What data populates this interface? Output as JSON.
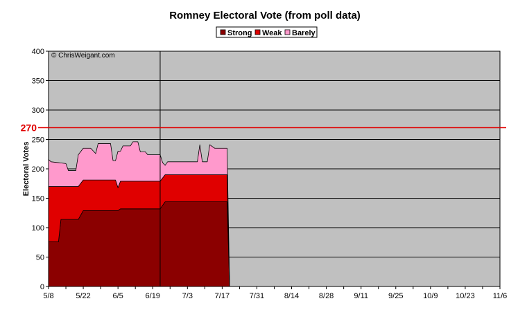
{
  "chart_data": {
    "type": "area",
    "stacked": true,
    "title": "Romney Electoral Vote (from poll data)",
    "ylabel": "Electoral Votes",
    "xlabel": "",
    "ylim": [
      0,
      400
    ],
    "yticks": [
      0,
      50,
      100,
      150,
      200,
      250,
      300,
      350,
      400
    ],
    "x_tick_labels": [
      "5/8",
      "5/22",
      "6/5",
      "6/19",
      "7/3",
      "7/17",
      "7/31",
      "8/14",
      "8/28",
      "9/11",
      "9/25",
      "10/9",
      "10/23",
      "11/6"
    ],
    "x_start": "2012-05-08",
    "x_end": "2012-11-06",
    "grid": "horizontal",
    "legend_position": "top",
    "copyright": "© ChrisWeigant.com",
    "reference_line": {
      "value": 270,
      "label": "270",
      "color": "#e00000"
    },
    "marker_line": {
      "date": "2012-06-22"
    },
    "plot_background": "#c0c0c0",
    "series": [
      {
        "name": "Strong",
        "color": "#8b0000",
        "points": [
          [
            "2012-05-08",
            76
          ],
          [
            "2012-05-12",
            76
          ],
          [
            "2012-05-13",
            114
          ],
          [
            "2012-05-20",
            114
          ],
          [
            "2012-05-22",
            129
          ],
          [
            "2012-06-05",
            129
          ],
          [
            "2012-06-06",
            132
          ],
          [
            "2012-06-22",
            132
          ],
          [
            "2012-06-24",
            144
          ],
          [
            "2012-07-19",
            144
          ],
          [
            "2012-07-20",
            0
          ]
        ]
      },
      {
        "name": "Weak",
        "color": "#e00000",
        "points": [
          [
            "2012-05-08",
            94
          ],
          [
            "2012-05-12",
            94
          ],
          [
            "2012-05-13",
            56
          ],
          [
            "2012-05-20",
            56
          ],
          [
            "2012-05-22",
            52
          ],
          [
            "2012-06-04",
            52
          ],
          [
            "2012-06-05",
            39
          ],
          [
            "2012-06-06",
            47
          ],
          [
            "2012-06-22",
            47
          ],
          [
            "2012-06-24",
            46
          ],
          [
            "2012-07-19",
            46
          ],
          [
            "2012-07-20",
            0
          ]
        ]
      },
      {
        "name": "Barely",
        "color": "#ff99cc",
        "points": [
          [
            "2012-05-08",
            46
          ],
          [
            "2012-05-09",
            42
          ],
          [
            "2012-05-15",
            39
          ],
          [
            "2012-05-16",
            27
          ],
          [
            "2012-05-19",
            27
          ],
          [
            "2012-05-20",
            54
          ],
          [
            "2012-05-25",
            54
          ],
          [
            "2012-05-27",
            45
          ],
          [
            "2012-05-28",
            62
          ],
          [
            "2012-06-02",
            62
          ],
          [
            "2012-06-03",
            33
          ],
          [
            "2012-06-04",
            33
          ],
          [
            "2012-06-05",
            62
          ],
          [
            "2012-06-06",
            51
          ],
          [
            "2012-06-07",
            60
          ],
          [
            "2012-06-10",
            60
          ],
          [
            "2012-06-11",
            67
          ],
          [
            "2012-06-13",
            67
          ],
          [
            "2012-06-14",
            50
          ],
          [
            "2012-06-16",
            50
          ],
          [
            "2012-06-17",
            45
          ],
          [
            "2012-06-22",
            45
          ],
          [
            "2012-06-23",
            26
          ],
          [
            "2012-06-24",
            16
          ],
          [
            "2012-06-25",
            22
          ],
          [
            "2012-07-07",
            22
          ],
          [
            "2012-07-08",
            51
          ],
          [
            "2012-07-09",
            22
          ],
          [
            "2012-07-11",
            22
          ],
          [
            "2012-07-12",
            51
          ],
          [
            "2012-07-14",
            45
          ],
          [
            "2012-07-19",
            45
          ],
          [
            "2012-07-20",
            0
          ]
        ]
      }
    ]
  }
}
